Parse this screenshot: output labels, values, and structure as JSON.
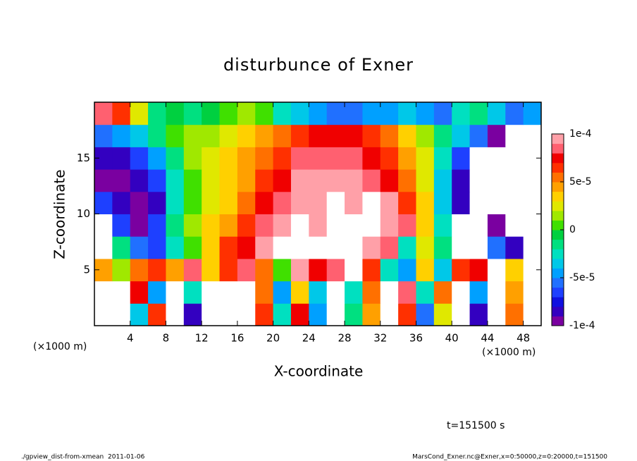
{
  "chart_data": {
    "type": "heatmap",
    "title": "disturbunce of Exner",
    "x_label": "X-coordinate",
    "y_label": "Z-coordinate",
    "x_unit": "(×1000 m)",
    "y_unit": "(×1000 m)",
    "annotation": "t=151500 s",
    "footer_left": "./gpview_dist-from-xmean  2011-01-06",
    "footer_right": "MarsCond_Exner.nc@Exner,x=0:50000,z=0:20000,t=151500",
    "xlim": [
      0,
      50
    ],
    "ylim": [
      0,
      20
    ],
    "xticks": [
      4,
      8,
      12,
      16,
      20,
      24,
      28,
      32,
      36,
      40,
      44,
      48
    ],
    "yticks": [
      5,
      10,
      15
    ],
    "clim": [
      -0.0001,
      0.0001
    ],
    "cticks": [
      {
        "value": 0.0001,
        "label": "1e-4"
      },
      {
        "value": 5e-05,
        "label": "5e-5"
      },
      0,
      {
        "value": -5e-05,
        "label": "-5e-5"
      },
      {
        "value": -0.0001,
        "label": "-1e-4"
      }
    ],
    "colors": [
      "#7a00a0",
      "#3300c0",
      "#1010e0",
      "#1e40ff",
      "#2070ff",
      "#00a0ff",
      "#00c8e8",
      "#00e0c0",
      "#00e080",
      "#00d040",
      "#40e000",
      "#a0e800",
      "#e0e800",
      "#ffd000",
      "#ffa000",
      "#ff7000",
      "#ff3000",
      "#f00000",
      "#ff6070",
      "#ffa0a8"
    ],
    "out_of_range_color": "#ffffff",
    "x": [
      1,
      3,
      5,
      7,
      9,
      11,
      13,
      15,
      17,
      19,
      21,
      23,
      25,
      27,
      29,
      31,
      33,
      35,
      37,
      39,
      41,
      43,
      45,
      47,
      49
    ],
    "y": [
      1,
      3,
      5,
      7,
      9,
      11,
      13,
      15,
      17,
      19
    ],
    "values": [
      [
        0.00012,
        0.00012,
        -4e-05,
        6e-05,
        0.00012,
        -8e-05,
        0.00012,
        0.00012,
        0.00012,
        6e-05,
        -3e-05,
        7e-05,
        -5e-05,
        0.00012,
        -2e-05,
        4e-05,
        0.00012,
        6e-05,
        -6e-05,
        2e-05,
        0.00012,
        -8e-05,
        -0.00012,
        5e-05,
        0.00012
      ],
      [
        0.00012,
        0.00012,
        7e-05,
        -5e-05,
        0.00012,
        -3e-05,
        0.00012,
        0.00012,
        0.00012,
        5e-05,
        -5e-05,
        3e-05,
        -4e-05,
        0.00012,
        -3e-05,
        5e-05,
        0.00012,
        8e-05,
        -3e-05,
        5e-05,
        0.00012,
        -5e-05,
        -0.00012,
        4e-05,
        0.00012
      ],
      [
        4e-05,
        1e-05,
        5e-05,
        6e-05,
        4e-05,
        8e-05,
        3e-05,
        6e-05,
        8e-05,
        5e-05,
        0,
        9e-05,
        7e-05,
        8e-05,
        0.00012,
        6e-05,
        -3e-05,
        -5e-05,
        3e-05,
        -4e-05,
        6e-05,
        7e-05,
        0.00012,
        3e-05,
        0.00012
      ],
      [
        -0.00012,
        -2e-05,
        -6e-05,
        -7e-05,
        -3e-05,
        0,
        3e-05,
        6e-05,
        7e-05,
        9e-05,
        0.00012,
        0.00012,
        0.00012,
        0.00012,
        0.00012,
        9e-05,
        8e-05,
        -3e-05,
        2e-05,
        -2e-05,
        -0.00012,
        -0.00012,
        -6e-05,
        -8e-05,
        -0.00012
      ],
      [
        -0.00012,
        -7e-05,
        -9e-05,
        -7e-05,
        -2e-05,
        1e-05,
        3e-05,
        4e-05,
        6e-05,
        8e-05,
        9e-05,
        0.00012,
        9e-05,
        0.00012,
        0.00012,
        0.00012,
        9e-05,
        8e-05,
        3e-05,
        -3e-05,
        -0.00012,
        -0.00012,
        -9e-05,
        -0.00012,
        -0.00012
      ],
      [
        -7e-05,
        -8e-05,
        -9e-05,
        -8e-05,
        -3e-05,
        0,
        2e-05,
        3e-05,
        5e-05,
        7e-05,
        8e-05,
        9e-05,
        9e-05,
        0.00012,
        9e-05,
        0.00012,
        9e-05,
        6e-05,
        3e-05,
        -4e-05,
        -8e-05,
        -0.00012,
        -0.00012,
        -0.00012,
        -0.00012
      ],
      [
        -9e-05,
        -9e-05,
        -8e-05,
        -7e-05,
        -3e-05,
        0,
        2e-05,
        3e-05,
        4e-05,
        6e-05,
        7e-05,
        9e-05,
        9e-05,
        9e-05,
        9e-05,
        8e-05,
        7e-05,
        5e-05,
        2e-05,
        -4e-05,
        -8e-05,
        -0.00012,
        -0.00012,
        -0.00012,
        -0.00012
      ],
      [
        -8e-05,
        -8e-05,
        -7e-05,
        -5e-05,
        -2e-05,
        1e-05,
        2e-05,
        3e-05,
        4e-05,
        5e-05,
        6e-05,
        8e-05,
        8e-05,
        8e-05,
        8e-05,
        7e-05,
        6e-05,
        4e-05,
        2e-05,
        -3e-05,
        -7e-05,
        -0.00012,
        -0.00012,
        -0.00012,
        -0.00012
      ],
      [
        -6e-05,
        -5e-05,
        -4e-05,
        -2e-05,
        0,
        1e-05,
        1e-05,
        2e-05,
        3e-05,
        4e-05,
        5e-05,
        6e-05,
        7e-05,
        7e-05,
        7e-05,
        6e-05,
        5e-05,
        3e-05,
        1e-05,
        -2e-05,
        -4e-05,
        -6e-05,
        -9e-05,
        -0.00012,
        -0.00012
      ],
      [
        8e-05,
        6e-05,
        2e-05,
        -2e-05,
        -1e-05,
        -2e-05,
        -1e-05,
        0,
        1e-05,
        0,
        -3e-05,
        -4e-05,
        -5e-05,
        -6e-05,
        -6e-05,
        -5e-05,
        -5e-05,
        -4e-05,
        -5e-05,
        -6e-05,
        -3e-05,
        -2e-05,
        -4e-05,
        -6e-05,
        -5e-05
      ]
    ]
  }
}
